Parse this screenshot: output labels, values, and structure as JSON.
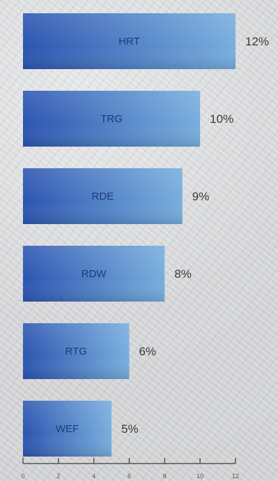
{
  "chart_data": {
    "type": "bar",
    "orientation": "horizontal",
    "categories": [
      "HRT",
      "TRG",
      "RDE",
      "RDW",
      "RTG",
      "WEF"
    ],
    "values": [
      12,
      10,
      9,
      8,
      6,
      5
    ],
    "value_labels": [
      "12%",
      "10%",
      "9%",
      "8%",
      "6%",
      "5%"
    ],
    "xlim": [
      0,
      12
    ],
    "x_ticks": [
      0,
      2,
      4,
      6,
      8,
      10,
      12
    ],
    "x_tick_labels": [
      "0",
      "2",
      "4",
      "6",
      "8",
      "10",
      "12"
    ],
    "title": "",
    "xlabel": "",
    "ylabel": "",
    "grid": false,
    "colors": {
      "bar_dark": "#2b55b0",
      "bar_light": "#78aede",
      "bar_text": "#1e3a78",
      "value_text": "#3a3a3a",
      "axis": "#555555"
    }
  }
}
